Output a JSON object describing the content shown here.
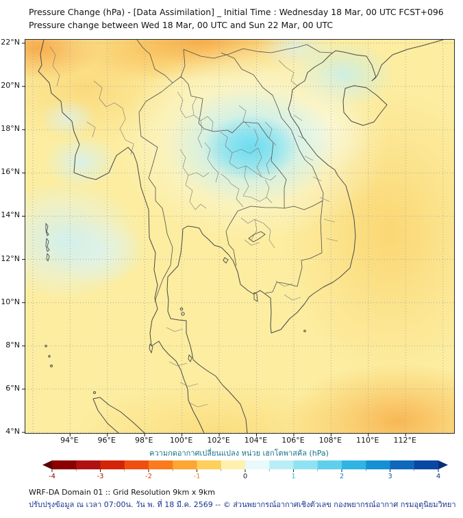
{
  "header": {
    "title_line1": "Pressure Change (hPa) - [Data Assimilation] _ Initial Time : Wednesday 18 Mar, 00 UTC FCST+096",
    "title_line2": "Pressure change between Wed 18 Mar, 00 UTC and Sun 22 Mar, 00 UTC"
  },
  "map": {
    "x_ticks": [
      "94°E",
      "96°E",
      "98°E",
      "100°E",
      "102°E",
      "104°E",
      "106°E",
      "108°E",
      "110°E",
      "112°E"
    ],
    "y_ticks": [
      "22°N",
      "20°N",
      "18°N",
      "16°N",
      "14°N",
      "12°N",
      "10°N",
      "8°N",
      "6°N",
      "4°N"
    ]
  },
  "colorbar": {
    "label": "ความกดอากาศเปลี่ยนแปลง หน่วย เฮกโตพาสคัล (hPa)",
    "label_color": "#157085",
    "ticks": [
      "-4",
      "-3",
      "-2",
      "-1",
      "0",
      "1",
      "2",
      "3",
      "4"
    ],
    "tick_colors": [
      "#7f0000",
      "#b01500",
      "#d84400",
      "#e88a1a",
      "#222222",
      "#39aede",
      "#1b7fc4",
      "#0f57ad",
      "#083a96"
    ],
    "segment_colors": [
      "#8b0000",
      "#b11010",
      "#d42408",
      "#ee4f10",
      "#f97b1e",
      "#fda632",
      "#fecf5a",
      "#fff0ad",
      "#e8fafc",
      "#b9eef6",
      "#8fe2f2",
      "#5fcfec",
      "#2fb4e4",
      "#1690d4",
      "#0e68bc",
      "#0a46a4"
    ],
    "left_arrow_color": "#5e0000",
    "right_arrow_color": "#072e7e"
  },
  "footer": {
    "line1": "WRF-DA Domain 01 :: Grid Resolution 9km x 9km",
    "line2": "ปรับปรุงข้อมูล ณ เวลา 07:00น. วัน พ. ที่ 18 มี.ค. 2569 -- © ส่วนพยากรณ์อากาศเชิงตัวเลข กองพยากรณ์อากาศ กรมอุตุนิยมวิทยา",
    "line2_color": "#16338f"
  },
  "chart_data": {
    "type": "heatmap",
    "title": "Pressure Change (hPa) - [Data Assimilation] _ Initial Time : Wednesday 18 Mar, 00 UTC FCST+096",
    "subtitle": "Pressure change between Wed 18 Mar, 00 UTC and Sun 22 Mar, 00 UTC",
    "units": "hPa",
    "model": "WRF-DA Domain 01, grid resolution 9km x 9km",
    "x_axis": {
      "label": "Longitude",
      "tick_values_deg_e": [
        94,
        96,
        98,
        100,
        102,
        104,
        106,
        108,
        110,
        112
      ],
      "range_deg_e": [
        91.6,
        114.6
      ]
    },
    "y_axis": {
      "label": "Latitude",
      "tick_values_deg_n": [
        22,
        20,
        18,
        16,
        14,
        12,
        10,
        8,
        6,
        4
      ],
      "range_deg_n": [
        4.0,
        22.2
      ]
    },
    "colorbar": {
      "label": "ความกดอากาศเปลี่ยนแปลง หน่วย เฮกโตพาสคัล (hPa)",
      "tick_values": [
        -4,
        -3,
        -2,
        -1,
        0,
        1,
        2,
        3,
        4
      ],
      "negative_color": "dark red",
      "positive_color": "dark blue"
    },
    "field_summary": [
      {
        "region": "Northeast Thailand / central Laos (101.5-106E, 15.5-19N)",
        "approx_value_hpa": 1.0,
        "appearance": "cyan maximum with whitish halo"
      },
      {
        "region": "Most of domain",
        "approx_value_hpa": -0.5,
        "appearance": "pale yellow"
      },
      {
        "region": "Top edge band near 99-103E, 21.5-22N and top-left corner",
        "approx_value_hpa": -1.5,
        "appearance": "orange"
      },
      {
        "region": "Bay of Bengal patches 92-96E, 12-17N",
        "approx_value_hpa": 0.5,
        "appearance": "pale cyan"
      },
      {
        "region": "Gulf of Tonkin 107-110E, 19.5-21.5N",
        "approx_value_hpa": 0.5,
        "appearance": "pale cyan"
      },
      {
        "region": "South China Sea east side 109-112E, 10-16N and SE corner 108-112E, 4-6N",
        "approx_value_hpa": -1.2,
        "appearance": "deeper yellow-orange"
      }
    ]
  }
}
